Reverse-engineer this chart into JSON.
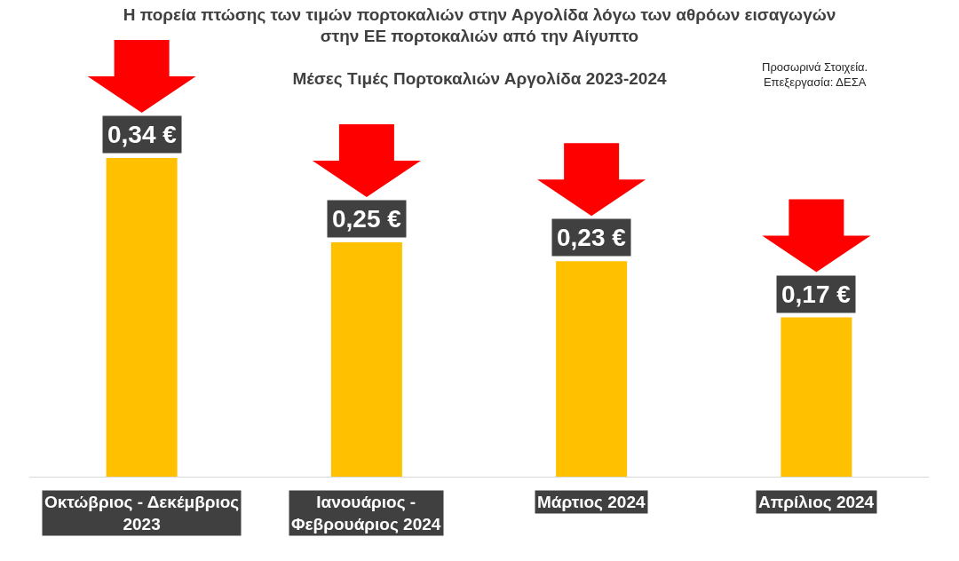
{
  "chart_data": {
    "type": "bar",
    "title": "Η πορεία πτώσης των τιμών πορτοκαλιών στην Αργολίδα λόγω των αθρόων εισαγωγών στην ΕΕ πορτοκαλιών από την Αίγυπτο",
    "subtitle": "Μέσες Τιμές Πορτοκαλιών Αργολίδα 2023-2024",
    "annotations": [
      "Προσωρινά Στοιχεία. Επεξεργασία: ΔΕΣΑ"
    ],
    "categories": [
      "Οκτώβριος - Δεκέμβριος 2023",
      "Ιανουάριος - Φεβρουάριος 2024",
      "Μάρτιος 2024",
      "Απρίλιος 2024"
    ],
    "values": [
      0.34,
      0.25,
      0.23,
      0.17
    ],
    "value_labels": [
      "0,34 €",
      "0,25 €",
      "0,23 €",
      "0,17 €"
    ],
    "color": "#ffc000",
    "tick_labels": "x"
  }
}
